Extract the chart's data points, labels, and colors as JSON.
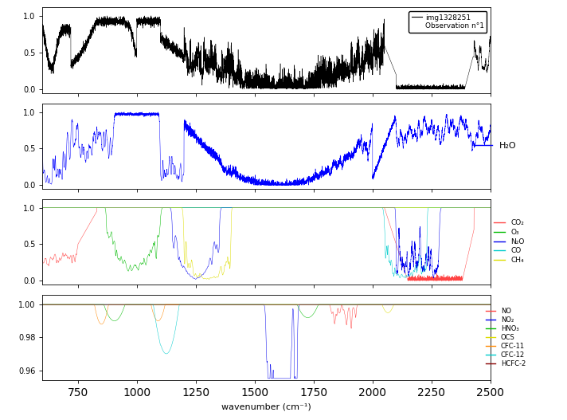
{
  "xlabel": "wavenumber (cm⁻¹)",
  "xmin": 600,
  "xmax": 2500,
  "legend1_labels": [
    "img1328251",
    "Observation n°1"
  ],
  "legend2_label": "H₂O",
  "legend3_labels": [
    "CO₂",
    "O₃",
    "N₂O",
    "CO",
    "CH₄"
  ],
  "legend3_colors": [
    "#ff4444",
    "#00bb00",
    "#0000ee",
    "#00cccc",
    "#dddd00"
  ],
  "legend4_labels": [
    "NO",
    "NO₂",
    "HNO₃",
    "OCS",
    "CFC-11",
    "CFC-12",
    "HCFC-2"
  ],
  "legend4_colors": [
    "#ff4444",
    "#0000ee",
    "#00bb00",
    "#dddd00",
    "#ff8800",
    "#00cccc",
    "#880000"
  ],
  "background_color": "#ffffff"
}
